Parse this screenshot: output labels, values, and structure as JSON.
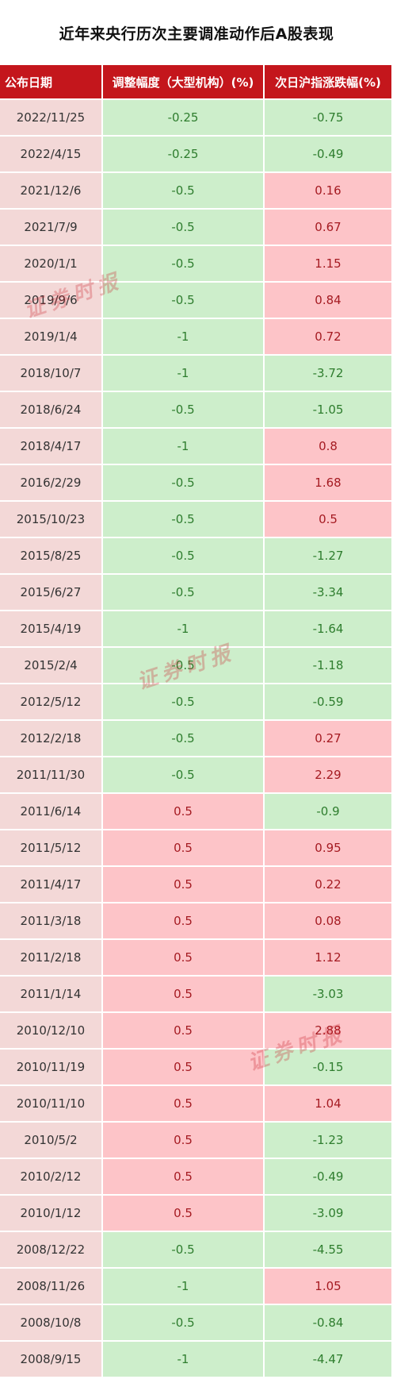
{
  "title": "近年来央行历次主要调准动作后A股表现",
  "headers": [
    "公布日期",
    "调整幅度（大型机构）(%)",
    "次日沪指涨跌幅(%)"
  ],
  "watermark": "证券时报",
  "colors": {
    "header_bg": "#c4161c",
    "date_bg": "#f3d8d7",
    "negative_bg": "#cdeecb",
    "positive_bg": "#fdc4c8"
  },
  "rows": [
    {
      "date": "2022/11/25",
      "adjust": "-0.25",
      "change": "-0.75"
    },
    {
      "date": "2022/4/15",
      "adjust": "-0.25",
      "change": "-0.49"
    },
    {
      "date": "2021/12/6",
      "adjust": "-0.5",
      "change": "0.16"
    },
    {
      "date": "2021/7/9",
      "adjust": "-0.5",
      "change": "0.67"
    },
    {
      "date": "2020/1/1",
      "adjust": "-0.5",
      "change": "1.15"
    },
    {
      "date": "2019/9/6",
      "adjust": "-0.5",
      "change": "0.84"
    },
    {
      "date": "2019/1/4",
      "adjust": "-1",
      "change": "0.72"
    },
    {
      "date": "2018/10/7",
      "adjust": "-1",
      "change": "-3.72"
    },
    {
      "date": "2018/6/24",
      "adjust": "-0.5",
      "change": "-1.05"
    },
    {
      "date": "2018/4/17",
      "adjust": "-1",
      "change": "0.8"
    },
    {
      "date": "2016/2/29",
      "adjust": "-0.5",
      "change": "1.68"
    },
    {
      "date": "2015/10/23",
      "adjust": "-0.5",
      "change": "0.5"
    },
    {
      "date": "2015/8/25",
      "adjust": "-0.5",
      "change": "-1.27"
    },
    {
      "date": "2015/6/27",
      "adjust": "-0.5",
      "change": "-3.34"
    },
    {
      "date": "2015/4/19",
      "adjust": "-1",
      "change": "-1.64"
    },
    {
      "date": "2015/2/4",
      "adjust": "-0.5",
      "change": "-1.18"
    },
    {
      "date": "2012/5/12",
      "adjust": "-0.5",
      "change": "-0.59"
    },
    {
      "date": "2012/2/18",
      "adjust": "-0.5",
      "change": "0.27"
    },
    {
      "date": "2011/11/30",
      "adjust": "-0.5",
      "change": "2.29"
    },
    {
      "date": "2011/6/14",
      "adjust": "0.5",
      "change": "-0.9"
    },
    {
      "date": "2011/5/12",
      "adjust": "0.5",
      "change": "0.95"
    },
    {
      "date": "2011/4/17",
      "adjust": "0.5",
      "change": "0.22"
    },
    {
      "date": "2011/3/18",
      "adjust": "0.5",
      "change": "0.08"
    },
    {
      "date": "2011/2/18",
      "adjust": "0.5",
      "change": "1.12"
    },
    {
      "date": "2011/1/14",
      "adjust": "0.5",
      "change": "-3.03"
    },
    {
      "date": "2010/12/10",
      "adjust": "0.5",
      "change": "2.88"
    },
    {
      "date": "2010/11/19",
      "adjust": "0.5",
      "change": "-0.15"
    },
    {
      "date": "2010/11/10",
      "adjust": "0.5",
      "change": "1.04"
    },
    {
      "date": "2010/5/2",
      "adjust": "0.5",
      "change": "-1.23"
    },
    {
      "date": "2010/2/12",
      "adjust": "0.5",
      "change": "-0.49"
    },
    {
      "date": "2010/1/12",
      "adjust": "0.5",
      "change": "-3.09"
    },
    {
      "date": "2008/12/22",
      "adjust": "-0.5",
      "change": "-4.55"
    },
    {
      "date": "2008/11/26",
      "adjust": "-1",
      "change": "1.05"
    },
    {
      "date": "2008/10/8",
      "adjust": "-0.5",
      "change": "-0.84"
    },
    {
      "date": "2008/9/15",
      "adjust": "-1",
      "change": "-4.47"
    }
  ]
}
